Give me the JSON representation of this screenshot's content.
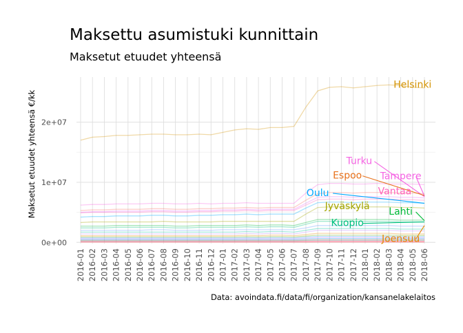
{
  "chart_data": {
    "type": "line",
    "title": "Maksettu asumistuki kunnittain",
    "subtitle": "Maksetut etuudet yhteensä",
    "xlabel": "",
    "ylabel": "Maksetut etuudet yhteensä €/kk",
    "caption": "Data: avoindata.fi/data/fi/organization/kansanelakelaitos",
    "x": [
      "2016-01",
      "2016-02",
      "2016-03",
      "2016-04",
      "2016-05",
      "2016-06",
      "2016-07",
      "2016-08",
      "2016-09",
      "2016-10",
      "2016-11",
      "2016-12",
      "2017-01",
      "2017-02",
      "2017-03",
      "2017-04",
      "2017-05",
      "2017-06",
      "2017-07",
      "2017-08",
      "2017-09",
      "2017-10",
      "2017-11",
      "2017-12",
      "2018-01",
      "2018-02",
      "2018-03",
      "2018-04",
      "2018-05",
      "2018-06"
    ],
    "ylim": [
      -200000,
      27500000
    ],
    "y_ticks": [
      0,
      10000000,
      20000000
    ],
    "y_tick_labels": [
      "0e+00",
      "1e+07",
      "2e+07"
    ],
    "grid": true,
    "legend": "none",
    "series": [
      {
        "name": "Helsinki",
        "color": "#D39200",
        "opacity": 0.35,
        "values": [
          17000000,
          17500000,
          17600000,
          17800000,
          17800000,
          17900000,
          18000000,
          18000000,
          17900000,
          17900000,
          18000000,
          17900000,
          18300000,
          18700000,
          18900000,
          18800000,
          19100000,
          19100000,
          19300000,
          22500000,
          25200000,
          25800000,
          25900000,
          25700000,
          25900000,
          26100000,
          26200000,
          26100000,
          25800000,
          25700000
        ],
        "label_pos": [
          2018.0,
          25700000
        ]
      },
      {
        "name": "Tampere",
        "color": "#F564E3",
        "opacity": 0.35,
        "values": [
          6200000,
          6300000,
          6300000,
          6400000,
          6400000,
          6400000,
          6500000,
          6500000,
          6400000,
          6400000,
          6500000,
          6400000,
          6500000,
          6500000,
          6600000,
          6500000,
          6500000,
          6500000,
          6500000,
          8200000,
          9600000,
          9800000,
          9800000,
          9700000,
          9700000,
          9800000,
          9700000,
          9700000,
          9700000,
          9600000
        ]
      },
      {
        "name": "Turku",
        "color": "#F8766D",
        "opacity": 0.35,
        "values": [
          5300000,
          5400000,
          5400000,
          5500000,
          5500000,
          5500000,
          5600000,
          5600000,
          5500000,
          5500000,
          5600000,
          5600000,
          5700000,
          5700000,
          5800000,
          5700000,
          5800000,
          5800000,
          5800000,
          7000000,
          8100000,
          8300000,
          8300000,
          8200000,
          8300000,
          8300000,
          8300000,
          8200000,
          8200000,
          8100000
        ]
      },
      {
        "name": "Espoo",
        "color": "#E76BF3",
        "opacity": 0.35,
        "values": [
          5000000,
          5100000,
          5100000,
          5200000,
          5200000,
          5200000,
          5300000,
          5300000,
          5200000,
          5200000,
          5300000,
          5300000,
          5400000,
          5400000,
          5500000,
          5400000,
          5500000,
          5500000,
          5500000,
          6500000,
          7500000,
          7600000,
          7600000,
          7500000,
          7600000,
          7600000,
          7600000,
          7500000,
          7500000,
          7400000
        ]
      },
      {
        "name": "Vantaa",
        "color": "#FF62BC",
        "opacity": 0.35,
        "values": [
          4900000,
          5000000,
          5000000,
          5000000,
          5000000,
          5000000,
          5100000,
          5100000,
          5000000,
          5000000,
          5100000,
          5100000,
          5200000,
          5200000,
          5300000,
          5200000,
          5300000,
          5300000,
          5300000,
          6200000,
          7100000,
          7200000,
          7200000,
          7100000,
          7200000,
          7200000,
          7200000,
          7100000,
          7100000,
          7000000
        ]
      },
      {
        "name": "Oulu",
        "color": "#00A9FF",
        "opacity": 0.35,
        "values": [
          4200000,
          4300000,
          4300000,
          4400000,
          4400000,
          4400000,
          4500000,
          4500000,
          4400000,
          4400000,
          4500000,
          4500000,
          4600000,
          4600000,
          4700000,
          4600000,
          4700000,
          4700000,
          4700000,
          5700000,
          6600000,
          6700000,
          6700000,
          6600000,
          6700000,
          6700000,
          6700000,
          6600000,
          6600000,
          6500000
        ]
      },
      {
        "name": "Jyväskylä",
        "color": "#A3A500",
        "opacity": 0.35,
        "values": [
          3300000,
          3400000,
          3400000,
          3400000,
          3400000,
          3400000,
          3400000,
          3500000,
          3400000,
          3400000,
          3400000,
          3400000,
          3500000,
          3500000,
          3500000,
          3500000,
          3500000,
          3500000,
          3500000,
          4700000,
          5800000,
          5900000,
          5900000,
          5800000,
          5900000,
          5900000,
          5900000,
          5800000,
          5800000,
          5700000
        ]
      },
      {
        "name": "Lahti",
        "color": "#00BA38",
        "opacity": 0.35,
        "values": [
          2700000,
          2700000,
          2700000,
          2800000,
          2800000,
          2800000,
          2800000,
          2800000,
          2700000,
          2700000,
          2800000,
          2800000,
          2800000,
          2800000,
          2900000,
          2800000,
          2900000,
          2900000,
          2800000,
          3300000,
          3800000,
          3800000,
          3800000,
          3800000,
          3800000,
          3800000,
          3800000,
          3700000,
          3700000,
          3700000
        ]
      },
      {
        "name": "Kuopio",
        "color": "#00BF7D",
        "opacity": 0.35,
        "values": [
          2400000,
          2400000,
          2400000,
          2500000,
          2500000,
          2500000,
          2500000,
          2500000,
          2400000,
          2400000,
          2500000,
          2500000,
          2500000,
          2500000,
          2600000,
          2500000,
          2600000,
          2600000,
          2500000,
          3000000,
          3500000,
          3500000,
          3500000,
          3500000,
          3500000,
          3500000,
          3500000,
          3400000,
          3400000,
          3400000
        ]
      },
      {
        "name": "",
        "color": "#619CFF",
        "opacity": 0.35,
        "values": [
          2000000,
          2000000,
          2000000,
          2000000,
          2000000,
          2000000,
          2100000,
          2100000,
          2000000,
          2000000,
          2000000,
          2000000,
          2100000,
          2100000,
          2100000,
          2100000,
          2100000,
          2100000,
          2100000,
          2400000,
          2800000,
          2800000,
          2800000,
          2800000,
          2800000,
          2800000,
          2800000,
          2700000,
          2700000,
          2700000
        ]
      },
      {
        "name": "",
        "color": "#00C1A3",
        "opacity": 0.35,
        "values": [
          1700000,
          1700000,
          1700000,
          1700000,
          1700000,
          1700000,
          1700000,
          1700000,
          1700000,
          1700000,
          1700000,
          1700000,
          1700000,
          1700000,
          1800000,
          1700000,
          1800000,
          1800000,
          1700000,
          2000000,
          2300000,
          2300000,
          2300000,
          2300000,
          2300000,
          2300000,
          2300000,
          2200000,
          2200000,
          2200000
        ]
      },
      {
        "name": "",
        "color": "#B983FF",
        "opacity": 0.35,
        "values": [
          1400000,
          1400000,
          1400000,
          1400000,
          1400000,
          1400000,
          1400000,
          1400000,
          1400000,
          1400000,
          1400000,
          1400000,
          1400000,
          1400000,
          1500000,
          1400000,
          1500000,
          1500000,
          1400000,
          1700000,
          2000000,
          2000000,
          2000000,
          2000000,
          2000000,
          2000000,
          2000000,
          1900000,
          1900000,
          1900000
        ]
      },
      {
        "name": "Joensuu",
        "color": "#E58700",
        "opacity": 0.35,
        "values": [
          1100000,
          1100000,
          1100000,
          1100000,
          1100000,
          1100000,
          1100000,
          1100000,
          1100000,
          1100000,
          1100000,
          1100000,
          1100000,
          1100000,
          1200000,
          1100000,
          1200000,
          1200000,
          1100000,
          1300000,
          1500000,
          1500000,
          1500000,
          1500000,
          1500000,
          1500000,
          1500000,
          1400000,
          1400000,
          1400000
        ]
      },
      {
        "name": "",
        "color": "#7CAE00",
        "opacity": 0.35,
        "values": [
          900000,
          900000,
          900000,
          900000,
          900000,
          900000,
          900000,
          900000,
          900000,
          900000,
          900000,
          900000,
          900000,
          900000,
          950000,
          900000,
          950000,
          950000,
          900000,
          1050000,
          1200000,
          1200000,
          1200000,
          1200000,
          1200000,
          1200000,
          1200000,
          1150000,
          1150000,
          1150000
        ]
      },
      {
        "name": "",
        "color": "#35A2FF",
        "opacity": 0.35,
        "values": [
          750000,
          750000,
          750000,
          750000,
          750000,
          750000,
          750000,
          750000,
          750000,
          750000,
          750000,
          750000,
          750000,
          750000,
          780000,
          750000,
          780000,
          780000,
          750000,
          880000,
          1000000,
          1000000,
          1000000,
          1000000,
          1000000,
          1000000,
          1000000,
          950000,
          950000,
          950000
        ]
      },
      {
        "name": "",
        "color": "#C77CFF",
        "opacity": 0.35,
        "values": [
          600000,
          600000,
          600000,
          600000,
          600000,
          600000,
          600000,
          600000,
          600000,
          600000,
          600000,
          600000,
          600000,
          600000,
          620000,
          600000,
          620000,
          620000,
          600000,
          700000,
          800000,
          800000,
          800000,
          800000,
          800000,
          800000,
          800000,
          760000,
          760000,
          760000
        ]
      },
      {
        "name": "",
        "color": "#00B0F6",
        "opacity": 0.35,
        "values": [
          480000,
          480000,
          480000,
          480000,
          480000,
          480000,
          480000,
          480000,
          480000,
          480000,
          480000,
          480000,
          480000,
          480000,
          500000,
          480000,
          500000,
          500000,
          480000,
          560000,
          640000,
          640000,
          640000,
          640000,
          640000,
          640000,
          640000,
          610000,
          610000,
          610000
        ]
      },
      {
        "name": "",
        "color": "#FF6C90",
        "opacity": 0.35,
        "values": [
          370000,
          370000,
          370000,
          370000,
          370000,
          370000,
          370000,
          370000,
          370000,
          370000,
          370000,
          370000,
          370000,
          370000,
          380000,
          370000,
          380000,
          380000,
          370000,
          430000,
          490000,
          490000,
          490000,
          490000,
          490000,
          490000,
          490000,
          470000,
          470000,
          470000
        ]
      },
      {
        "name": "",
        "color": "#00BD5C",
        "opacity": 0.35,
        "values": [
          280000,
          280000,
          280000,
          280000,
          280000,
          280000,
          280000,
          280000,
          280000,
          280000,
          280000,
          280000,
          280000,
          280000,
          290000,
          280000,
          290000,
          290000,
          280000,
          330000,
          380000,
          380000,
          380000,
          380000,
          380000,
          380000,
          380000,
          360000,
          360000,
          360000
        ]
      },
      {
        "name": "",
        "color": "#FF61C9",
        "opacity": 0.35,
        "values": [
          200000,
          200000,
          200000,
          200000,
          200000,
          200000,
          200000,
          200000,
          200000,
          200000,
          200000,
          200000,
          200000,
          200000,
          210000,
          200000,
          210000,
          210000,
          200000,
          240000,
          270000,
          270000,
          270000,
          270000,
          270000,
          270000,
          270000,
          260000,
          260000,
          260000
        ]
      },
      {
        "name": "",
        "color": "#F8766D",
        "opacity": 0.35,
        "values": [
          130000,
          130000,
          130000,
          130000,
          130000,
          130000,
          130000,
          130000,
          130000,
          130000,
          130000,
          130000,
          130000,
          130000,
          140000,
          130000,
          140000,
          140000,
          130000,
          150000,
          170000,
          170000,
          170000,
          170000,
          170000,
          170000,
          170000,
          165000,
          165000,
          165000
        ]
      },
      {
        "name": "",
        "color": "#FF6A98",
        "opacity": 0.35,
        "values": [
          70000,
          70000,
          70000,
          70000,
          70000,
          70000,
          70000,
          70000,
          70000,
          70000,
          70000,
          70000,
          70000,
          70000,
          75000,
          70000,
          75000,
          75000,
          70000,
          85000,
          95000,
          95000,
          95000,
          95000,
          95000,
          95000,
          95000,
          90000,
          90000,
          90000
        ]
      },
      {
        "name": "",
        "color": "#F8766D",
        "opacity": 0.35,
        "values": [
          30000,
          30000,
          30000,
          30000,
          30000,
          30000,
          30000,
          30000,
          30000,
          30000,
          30000,
          30000,
          30000,
          30000,
          32000,
          30000,
          32000,
          32000,
          30000,
          36000,
          40000,
          40000,
          40000,
          40000,
          40000,
          40000,
          40000,
          38000,
          38000,
          38000
        ]
      }
    ],
    "annotations": [
      {
        "text": "Helsinki",
        "color": "#D39200",
        "tx": 28.0,
        "ty": 25700000,
        "anchor": "middle"
      },
      {
        "text": "Turku",
        "color": "#F564E3",
        "tx": 23.5,
        "ty": 13000000,
        "anchor": "middle",
        "line_to": [
          29,
          7600000
        ]
      },
      {
        "text": "Tampere",
        "color": "#F564E3",
        "tx": 27.0,
        "ty": 10500000,
        "anchor": "middle",
        "line_to": [
          29,
          7700000
        ]
      },
      {
        "text": "Espoo",
        "color": "#E7701A",
        "tx": 22.5,
        "ty": 10600000,
        "anchor": "middle",
        "line_to": [
          29,
          7800000
        ]
      },
      {
        "text": "Vantaa",
        "color": "#FF62BC",
        "tx": 26.5,
        "ty": 8000000,
        "anchor": "middle"
      },
      {
        "text": "Oulu",
        "color": "#00A9FF",
        "tx": 20.0,
        "ty": 7700000,
        "anchor": "middle",
        "line_to": [
          29,
          6500000
        ]
      },
      {
        "text": "Jyväskylä",
        "color": "#A3A500",
        "tx": 22.5,
        "ty": 5500000,
        "anchor": "middle"
      },
      {
        "text": "Lahti",
        "color": "#00BA38",
        "tx": 27.0,
        "ty": 4600000,
        "anchor": "middle",
        "line_to": [
          29,
          3600000
        ]
      },
      {
        "text": "Kuopio",
        "color": "#00BF7D",
        "tx": 22.5,
        "ty": 2700000,
        "anchor": "middle",
        "line_to": [
          29,
          3400000
        ]
      },
      {
        "text": "Joensuu",
        "color": "#E58700",
        "tx": 27.0,
        "ty": 100000,
        "anchor": "middle",
        "line_to": [
          29,
          2800000
        ]
      }
    ]
  }
}
